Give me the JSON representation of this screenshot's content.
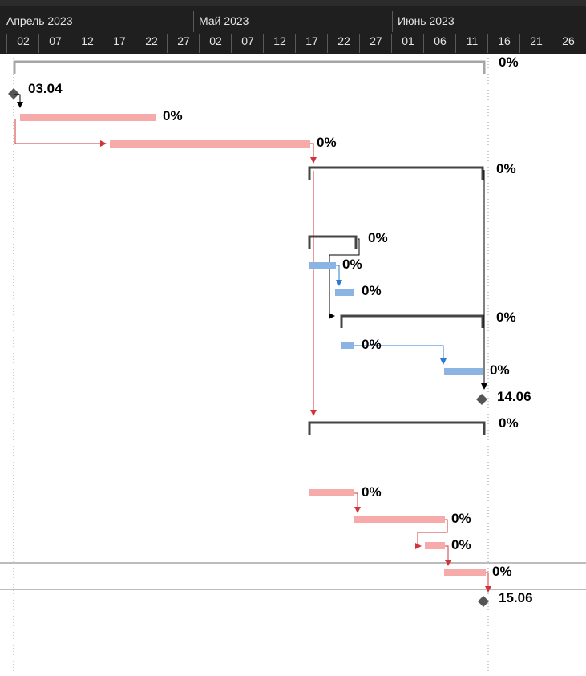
{
  "timescale": {
    "months": [
      "Апрель 2023",
      "Май 2023",
      "Июнь 2023"
    ],
    "days": [
      "02",
      "07",
      "12",
      "17",
      "22",
      "27",
      "02",
      "07",
      "12",
      "17",
      "22",
      "27",
      "01",
      "06",
      "11",
      "16",
      "21",
      "26"
    ]
  },
  "labels": {
    "summary_project": "0%",
    "milestone_start": "03.04",
    "task_1": "0%",
    "task_2": "0%",
    "summary_2": "0%",
    "summary_3": "0%",
    "task_3": "0%",
    "task_4": "0%",
    "summary_4": "0%",
    "task_5": "0%",
    "task_6": "0%",
    "milestone_2": "14.06",
    "summary_5": "0%",
    "task_7": "0%",
    "task_8": "0%",
    "task_9": "0%",
    "task_10": "0%",
    "milestone_end": "15.06"
  },
  "colors": {
    "header_bg": "#1f1f1f",
    "critical_task": "#f7aaaa",
    "normal_task": "#8cb4e2",
    "summary_bar": "#444444",
    "project_summary_bar": "#a6a6a6",
    "critical_link": "#d13438",
    "normal_link": "#2a7bd1",
    "milestone": "#555555"
  }
}
